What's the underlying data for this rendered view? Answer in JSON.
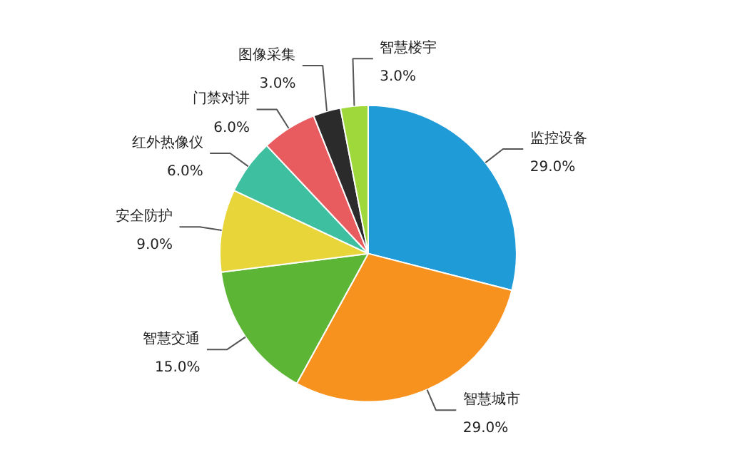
{
  "chart_data": {
    "type": "pie",
    "categories": [
      "监控设备",
      "智慧城市",
      "智慧交通",
      "安全防护",
      "红外热像仪",
      "门禁对讲",
      "图像采集",
      "智慧楼宇"
    ],
    "values": [
      29,
      29,
      15,
      9,
      6,
      6,
      3,
      3
    ],
    "value_labels": [
      "29.0%",
      "29.0%",
      "15.0%",
      "9.0%",
      "6.0%",
      "6.0%",
      "3.0%",
      "3.0%"
    ],
    "colors": [
      "#1f9bd7",
      "#f7921e",
      "#5db535",
      "#e8d53a",
      "#3dbfa0",
      "#e85b5f",
      "#2b2b2b",
      "#9fd83a"
    ]
  }
}
